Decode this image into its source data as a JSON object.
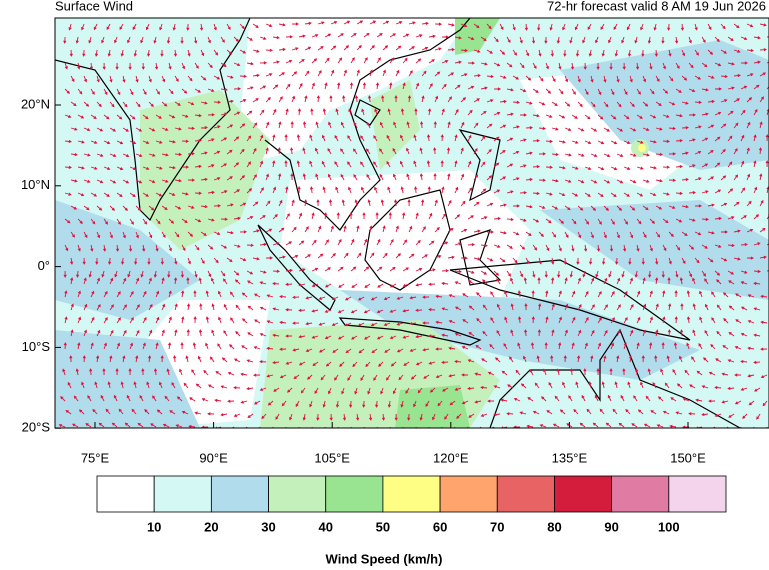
{
  "header": {
    "title": "Surface Wind",
    "subtitle": "72-hr forecast valid 8 AM 19 Jun 2026"
  },
  "map": {
    "lat_ticks": [
      "20°N",
      "10°N",
      "0°",
      "10°S",
      "20°S"
    ],
    "lon_ticks": [
      "75°E",
      "90°E",
      "105°E",
      "120°E",
      "135°E",
      "150°E"
    ]
  },
  "colorbar": {
    "title": "Wind Speed (km/h)",
    "levels": [
      10,
      20,
      30,
      40,
      50,
      60,
      70,
      80,
      90,
      100
    ],
    "colors": [
      "#ffffff",
      "#d4f8f4",
      "#b0dcec",
      "#c4f0bc",
      "#98e490",
      "#fefe84",
      "#ffa46c",
      "#e86464",
      "#d41c3c",
      "#e07ca4",
      "#f4d4ec"
    ]
  }
}
